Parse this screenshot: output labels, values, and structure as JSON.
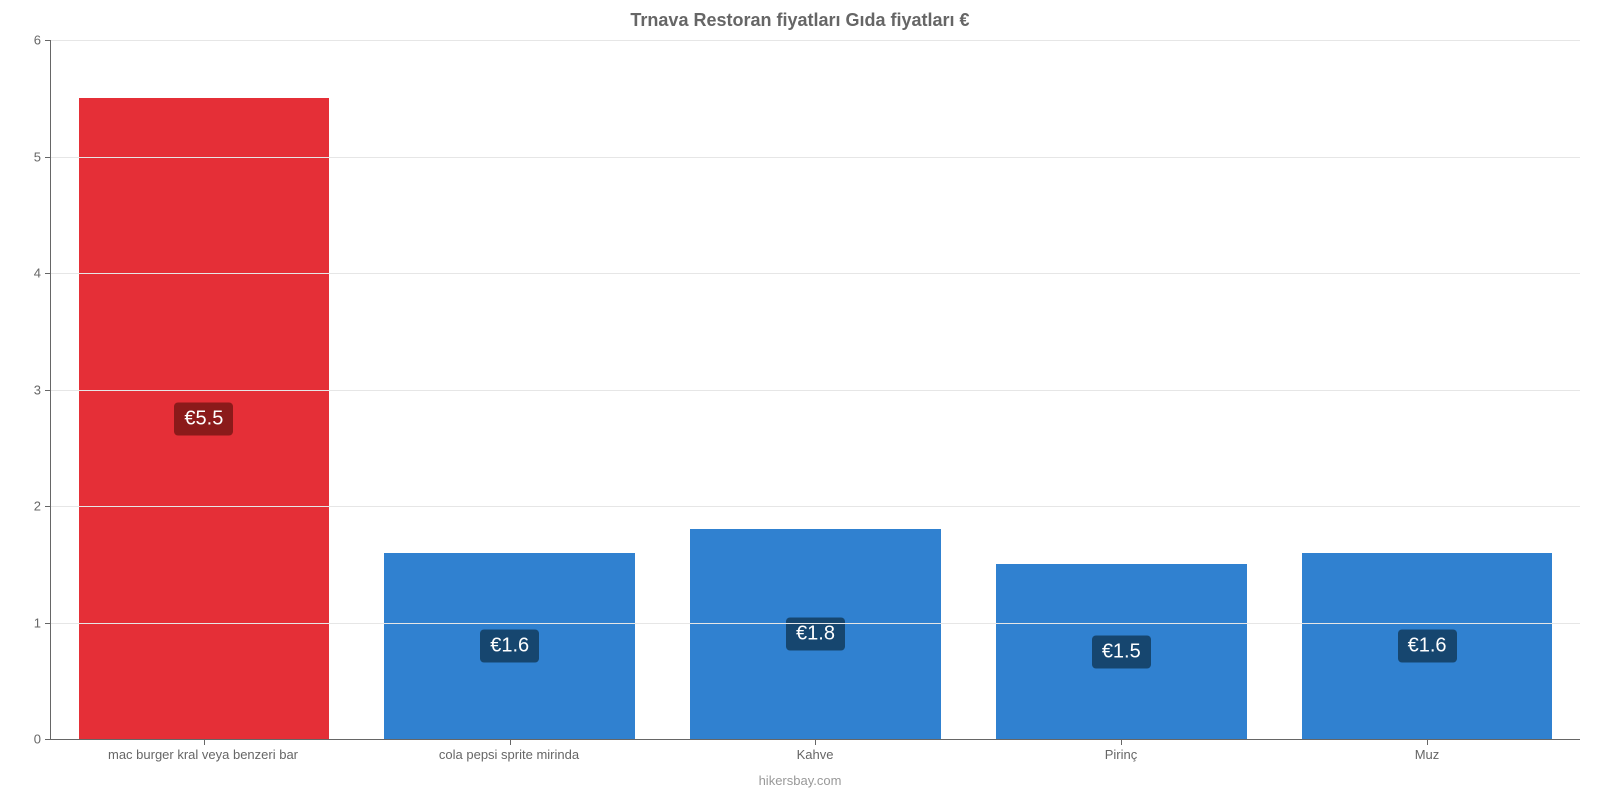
{
  "chart": {
    "type": "bar",
    "title": "Trnava Restoran fiyatları Gıda fiyatları €",
    "title_fontsize": 18,
    "title_color": "#666666",
    "background_color": "#ffffff",
    "grid_color": "#e6e6e6",
    "axis_color": "#666666",
    "label_color": "#666666",
    "label_fontsize": 13,
    "ymin": 0,
    "ymax": 6,
    "ytick_step": 1,
    "yticks": [
      0,
      1,
      2,
      3,
      4,
      5,
      6
    ],
    "bar_width_ratio": 0.82,
    "categories": [
      "mac burger kral veya benzeri bar",
      "cola pepsi sprite mirinda",
      "Kahve",
      "Pirinç",
      "Muz"
    ],
    "values": [
      5.5,
      1.6,
      1.8,
      1.5,
      1.6
    ],
    "value_labels": [
      "€5.5",
      "€1.6",
      "€1.8",
      "€1.5",
      "€1.6"
    ],
    "bar_colors": [
      "#e52f37",
      "#3081d0",
      "#3081d0",
      "#3081d0",
      "#3081d0"
    ],
    "value_label_bg": [
      "#8b1a1a",
      "#16466f",
      "#16466f",
      "#16466f",
      "#16466f"
    ],
    "value_label_color": "#ffffff",
    "value_label_fontsize": 20,
    "footer": "hikersbay.com",
    "footer_color": "#999999"
  }
}
